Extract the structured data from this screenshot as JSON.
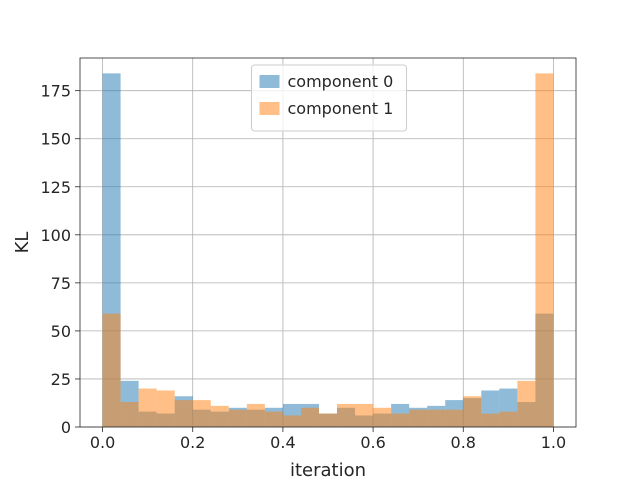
{
  "chart_data": {
    "type": "bar",
    "subtype": "overlapping-histogram",
    "xlabel": "iteration",
    "ylabel": "KL",
    "xlim": [
      -0.05,
      1.05
    ],
    "ylim": [
      0,
      192
    ],
    "xticks": [
      "0.0",
      "0.2",
      "0.4",
      "0.6",
      "0.8",
      "1.0"
    ],
    "yticks": [
      "0",
      "25",
      "50",
      "75",
      "100",
      "125",
      "150",
      "175"
    ],
    "grid": true,
    "legend_position": "upper center",
    "bin_edges": [
      0.0,
      0.04,
      0.08,
      0.12,
      0.16,
      0.2,
      0.24,
      0.28,
      0.32,
      0.36,
      0.4,
      0.44,
      0.48,
      0.52,
      0.56,
      0.6,
      0.64,
      0.68,
      0.72,
      0.76,
      0.8,
      0.84,
      0.88,
      0.92,
      0.96,
      1.0
    ],
    "series": [
      {
        "name": "component 0",
        "color": "#1f77b4",
        "values": [
          184,
          24,
          8,
          7,
          16,
          9,
          8,
          10,
          9,
          10,
          12,
          12,
          7,
          10,
          6,
          7,
          12,
          10,
          11,
          14,
          15,
          19,
          20,
          13,
          59
        ]
      },
      {
        "name": "component 1",
        "color": "#ff7f0e",
        "values": [
          59,
          13,
          20,
          19,
          14,
          14,
          11,
          9,
          12,
          8,
          6,
          10,
          7,
          12,
          12,
          10,
          7,
          9,
          9,
          9,
          16,
          7,
          8,
          24,
          184
        ]
      }
    ]
  }
}
